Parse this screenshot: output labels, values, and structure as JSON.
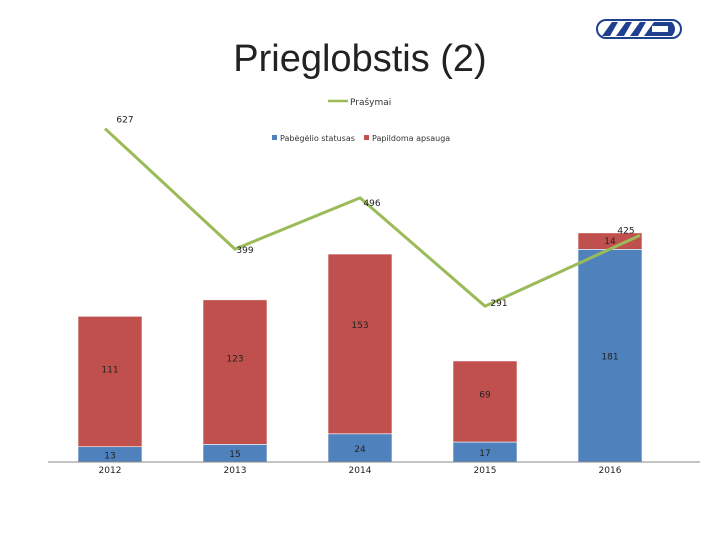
{
  "slide": {
    "title": "Prieglobstis (2)"
  },
  "logo": {
    "name": "migration-department-logo-icon"
  },
  "chart_data": {
    "type": "bar",
    "stacked": true,
    "categories": [
      "2012",
      "2013",
      "2014",
      "2015",
      "2016"
    ],
    "series": [
      {
        "name": "Pabėgėlio statusas",
        "color": "#4f81bd",
        "values": [
          13,
          15,
          24,
          17,
          181
        ]
      },
      {
        "name": "Papildoma apsauga",
        "color": "#c0504d",
        "values": [
          111,
          123,
          153,
          69,
          14
        ]
      }
    ],
    "line_series": {
      "name": "Prašymai",
      "color": "#9bbb59",
      "values": [
        627,
        399,
        496,
        291,
        425
      ]
    },
    "ylim_bars": [
      0,
      200
    ],
    "ylim_line": [
      0,
      700
    ],
    "legend_line": "top-center",
    "legend_bars": "top-center",
    "grid": false
  }
}
